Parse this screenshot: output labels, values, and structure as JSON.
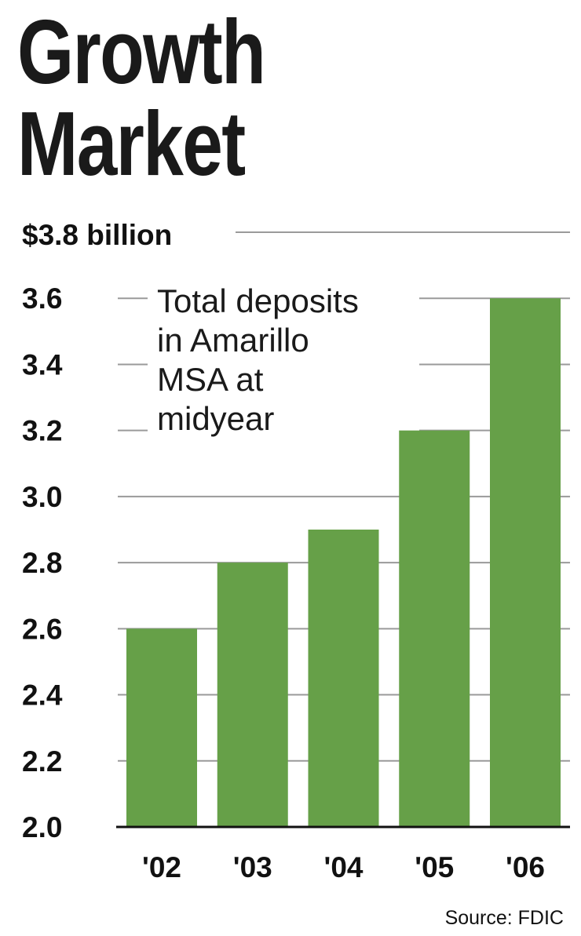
{
  "chart_data": {
    "type": "bar",
    "title": [
      "Growth",
      "Market"
    ],
    "top_label": "$3.8 billion",
    "annotation": [
      "Total deposits",
      "in Amarillo",
      "MSA at",
      "midyear"
    ],
    "categories": [
      "'02",
      "'03",
      "'04",
      "'05",
      "'06"
    ],
    "values": [
      2.6,
      2.8,
      2.9,
      3.2,
      3.6
    ],
    "y_ticks": [
      "2.0",
      "2.2",
      "2.4",
      "2.6",
      "2.8",
      "3.0",
      "3.2",
      "3.4",
      "3.6"
    ],
    "ylim": [
      2.0,
      3.8
    ],
    "grid": true,
    "bar_color": "#66a048",
    "source": "Source: FDIC"
  }
}
